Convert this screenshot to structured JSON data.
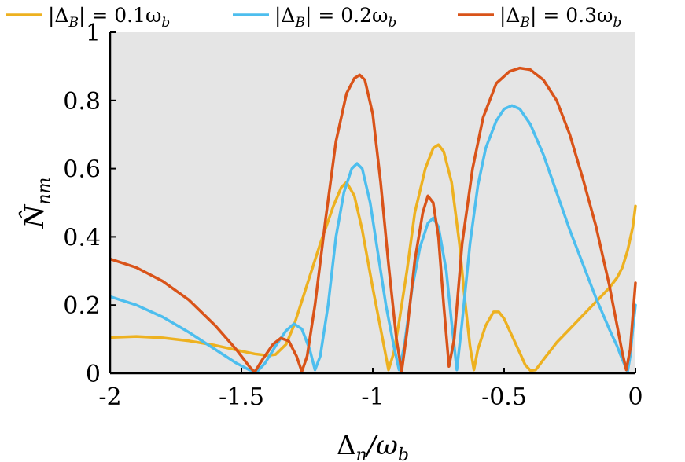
{
  "chart_data": {
    "type": "line",
    "xlabel": "Δn/ωb",
    "ylabel": "N̂nm",
    "xlim": [
      -2,
      0
    ],
    "ylim": [
      0,
      1
    ],
    "grid": false,
    "background": "#e5e5e5",
    "x_ticks": [
      {
        "value": -2,
        "label": "-2"
      },
      {
        "value": -1.5,
        "label": "-1.5"
      },
      {
        "value": -1,
        "label": "-1"
      },
      {
        "value": -0.5,
        "label": "-0.5"
      },
      {
        "value": 0,
        "label": "0"
      }
    ],
    "y_ticks": [
      {
        "value": 0,
        "label": "0"
      },
      {
        "value": 0.2,
        "label": "0.2"
      },
      {
        "value": 0.4,
        "label": "0.4"
      },
      {
        "value": 0.6,
        "label": "0.6"
      },
      {
        "value": 0.8,
        "label": "0.8"
      },
      {
        "value": 1,
        "label": "1"
      }
    ],
    "legend_placement": "top",
    "series": [
      {
        "name": "|ΔB| = 0.1ωb",
        "legend": {
          "prefix": "|Δ",
          "sub": "B",
          "mid": "| = 0.1ω",
          "sub2": "b"
        },
        "color": "#EDB120",
        "points": [
          [
            -2.0,
            0.105
          ],
          [
            -1.9,
            0.108
          ],
          [
            -1.8,
            0.104
          ],
          [
            -1.7,
            0.095
          ],
          [
            -1.6,
            0.082
          ],
          [
            -1.5,
            0.065
          ],
          [
            -1.45,
            0.057
          ],
          [
            -1.4,
            0.052
          ],
          [
            -1.37,
            0.055
          ],
          [
            -1.33,
            0.085
          ],
          [
            -1.3,
            0.14
          ],
          [
            -1.25,
            0.26
          ],
          [
            -1.2,
            0.38
          ],
          [
            -1.15,
            0.49
          ],
          [
            -1.12,
            0.545
          ],
          [
            -1.1,
            0.56
          ],
          [
            -1.07,
            0.52
          ],
          [
            -1.04,
            0.42
          ],
          [
            -1.0,
            0.25
          ],
          [
            -0.96,
            0.09
          ],
          [
            -0.94,
            0.01
          ],
          [
            -0.92,
            0.06
          ],
          [
            -0.9,
            0.15
          ],
          [
            -0.87,
            0.3
          ],
          [
            -0.84,
            0.47
          ],
          [
            -0.8,
            0.6
          ],
          [
            -0.77,
            0.66
          ],
          [
            -0.75,
            0.67
          ],
          [
            -0.73,
            0.65
          ],
          [
            -0.7,
            0.56
          ],
          [
            -0.67,
            0.38
          ],
          [
            -0.65,
            0.22
          ],
          [
            -0.63,
            0.08
          ],
          [
            -0.615,
            0.01
          ],
          [
            -0.6,
            0.07
          ],
          [
            -0.57,
            0.14
          ],
          [
            -0.54,
            0.18
          ],
          [
            -0.52,
            0.18
          ],
          [
            -0.5,
            0.16
          ],
          [
            -0.47,
            0.11
          ],
          [
            -0.44,
            0.06
          ],
          [
            -0.42,
            0.025
          ],
          [
            -0.4,
            0.008
          ],
          [
            -0.38,
            0.01
          ],
          [
            -0.35,
            0.04
          ],
          [
            -0.3,
            0.09
          ],
          [
            -0.25,
            0.13
          ],
          [
            -0.2,
            0.17
          ],
          [
            -0.15,
            0.21
          ],
          [
            -0.1,
            0.25
          ],
          [
            -0.07,
            0.28
          ],
          [
            -0.05,
            0.31
          ],
          [
            -0.03,
            0.36
          ],
          [
            -0.01,
            0.43
          ],
          [
            0.0,
            0.49
          ]
        ]
      },
      {
        "name": "|ΔB| = 0.2ωb",
        "legend": {
          "prefix": "|Δ",
          "sub": "B",
          "mid": "| = 0.2ω",
          "sub2": "b"
        },
        "color": "#4DBEEE",
        "points": [
          [
            -2.0,
            0.225
          ],
          [
            -1.9,
            0.2
          ],
          [
            -1.8,
            0.165
          ],
          [
            -1.7,
            0.12
          ],
          [
            -1.6,
            0.07
          ],
          [
            -1.52,
            0.03
          ],
          [
            -1.47,
            0.01
          ],
          [
            -1.44,
            0.005
          ],
          [
            -1.41,
            0.03
          ],
          [
            -1.37,
            0.08
          ],
          [
            -1.33,
            0.125
          ],
          [
            -1.3,
            0.145
          ],
          [
            -1.27,
            0.13
          ],
          [
            -1.24,
            0.07
          ],
          [
            -1.22,
            0.01
          ],
          [
            -1.2,
            0.05
          ],
          [
            -1.17,
            0.2
          ],
          [
            -1.14,
            0.4
          ],
          [
            -1.11,
            0.53
          ],
          [
            -1.08,
            0.6
          ],
          [
            -1.06,
            0.615
          ],
          [
            -1.04,
            0.6
          ],
          [
            -1.01,
            0.5
          ],
          [
            -0.98,
            0.35
          ],
          [
            -0.95,
            0.2
          ],
          [
            -0.92,
            0.08
          ],
          [
            -0.9,
            0.01
          ],
          [
            -0.88,
            0.08
          ],
          [
            -0.85,
            0.25
          ],
          [
            -0.82,
            0.37
          ],
          [
            -0.79,
            0.44
          ],
          [
            -0.77,
            0.455
          ],
          [
            -0.75,
            0.43
          ],
          [
            -0.72,
            0.3
          ],
          [
            -0.7,
            0.15
          ],
          [
            -0.68,
            0.01
          ],
          [
            -0.66,
            0.15
          ],
          [
            -0.63,
            0.38
          ],
          [
            -0.6,
            0.55
          ],
          [
            -0.57,
            0.66
          ],
          [
            -0.53,
            0.74
          ],
          [
            -0.5,
            0.775
          ],
          [
            -0.47,
            0.785
          ],
          [
            -0.44,
            0.775
          ],
          [
            -0.4,
            0.73
          ],
          [
            -0.35,
            0.64
          ],
          [
            -0.3,
            0.53
          ],
          [
            -0.25,
            0.42
          ],
          [
            -0.2,
            0.32
          ],
          [
            -0.15,
            0.22
          ],
          [
            -0.1,
            0.13
          ],
          [
            -0.07,
            0.08
          ],
          [
            -0.05,
            0.04
          ],
          [
            -0.03,
            0.005
          ],
          [
            -0.02,
            0.05
          ],
          [
            -0.01,
            0.13
          ],
          [
            0.0,
            0.2
          ]
        ]
      },
      {
        "name": "|ΔB| = 0.3ωb",
        "legend": {
          "prefix": "|Δ",
          "sub": "B",
          "mid": "| = 0.3ω",
          "sub2": "b"
        },
        "color": "#D95319",
        "points": [
          [
            -2.0,
            0.335
          ],
          [
            -1.9,
            0.31
          ],
          [
            -1.8,
            0.27
          ],
          [
            -1.7,
            0.215
          ],
          [
            -1.6,
            0.14
          ],
          [
            -1.52,
            0.07
          ],
          [
            -1.47,
            0.02
          ],
          [
            -1.45,
            0.003
          ],
          [
            -1.42,
            0.04
          ],
          [
            -1.38,
            0.085
          ],
          [
            -1.35,
            0.103
          ],
          [
            -1.32,
            0.095
          ],
          [
            -1.29,
            0.05
          ],
          [
            -1.27,
            0.005
          ],
          [
            -1.25,
            0.05
          ],
          [
            -1.22,
            0.2
          ],
          [
            -1.18,
            0.45
          ],
          [
            -1.14,
            0.68
          ],
          [
            -1.1,
            0.82
          ],
          [
            -1.07,
            0.865
          ],
          [
            -1.05,
            0.875
          ],
          [
            -1.03,
            0.86
          ],
          [
            -1.0,
            0.76
          ],
          [
            -0.97,
            0.56
          ],
          [
            -0.94,
            0.32
          ],
          [
            -0.91,
            0.1
          ],
          [
            -0.89,
            0.005
          ],
          [
            -0.87,
            0.12
          ],
          [
            -0.84,
            0.33
          ],
          [
            -0.81,
            0.47
          ],
          [
            -0.79,
            0.52
          ],
          [
            -0.77,
            0.5
          ],
          [
            -0.75,
            0.4
          ],
          [
            -0.73,
            0.2
          ],
          [
            -0.71,
            0.02
          ],
          [
            -0.69,
            0.1
          ],
          [
            -0.66,
            0.38
          ],
          [
            -0.62,
            0.6
          ],
          [
            -0.58,
            0.75
          ],
          [
            -0.53,
            0.85
          ],
          [
            -0.48,
            0.885
          ],
          [
            -0.44,
            0.895
          ],
          [
            -0.4,
            0.89
          ],
          [
            -0.35,
            0.86
          ],
          [
            -0.3,
            0.8
          ],
          [
            -0.25,
            0.7
          ],
          [
            -0.2,
            0.57
          ],
          [
            -0.15,
            0.43
          ],
          [
            -0.1,
            0.26
          ],
          [
            -0.07,
            0.14
          ],
          [
            -0.05,
            0.06
          ],
          [
            -0.035,
            0.01
          ],
          [
            -0.02,
            0.07
          ],
          [
            -0.01,
            0.17
          ],
          [
            0.0,
            0.265
          ]
        ]
      }
    ]
  }
}
